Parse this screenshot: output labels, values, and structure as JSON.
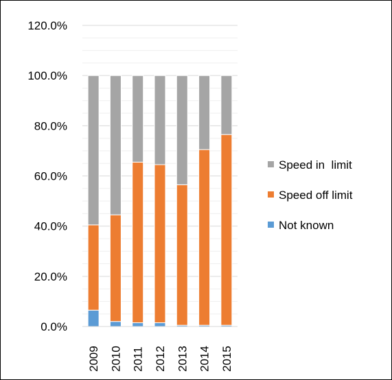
{
  "chart_data": {
    "type": "bar",
    "stacked": true,
    "categories": [
      "2009",
      "2010",
      "2011",
      "2012",
      "2013",
      "2014",
      "2015"
    ],
    "series": [
      {
        "name": "Not known",
        "values": [
          6.5,
          2.0,
          1.5,
          1.5,
          0.5,
          0.5,
          0.5
        ],
        "color": "#5b9bd5"
      },
      {
        "name": "Speed off limit",
        "values": [
          34.0,
          42.5,
          64.0,
          63.0,
          56.0,
          70.0,
          76.0
        ],
        "color": "#ed7d31"
      },
      {
        "name": "Speed in  limit",
        "values": [
          59.5,
          55.5,
          34.5,
          35.5,
          43.5,
          29.5,
          23.5
        ],
        "color": "#a5a5a5"
      }
    ],
    "y_ticks": [
      "0.0%",
      "20.0%",
      "40.0%",
      "60.0%",
      "80.0%",
      "100.0%",
      "120.0%"
    ],
    "ylim": [
      0,
      120
    ],
    "grid": true,
    "legend_position": "right",
    "legend": [
      {
        "label": "Speed in  limit",
        "color": "#a5a5a5"
      },
      {
        "label": "Speed off limit",
        "color": "#ed7d31"
      },
      {
        "label": "Not known",
        "color": "#5b9bd5"
      }
    ],
    "title": "",
    "xlabel": "",
    "ylabel": ""
  }
}
